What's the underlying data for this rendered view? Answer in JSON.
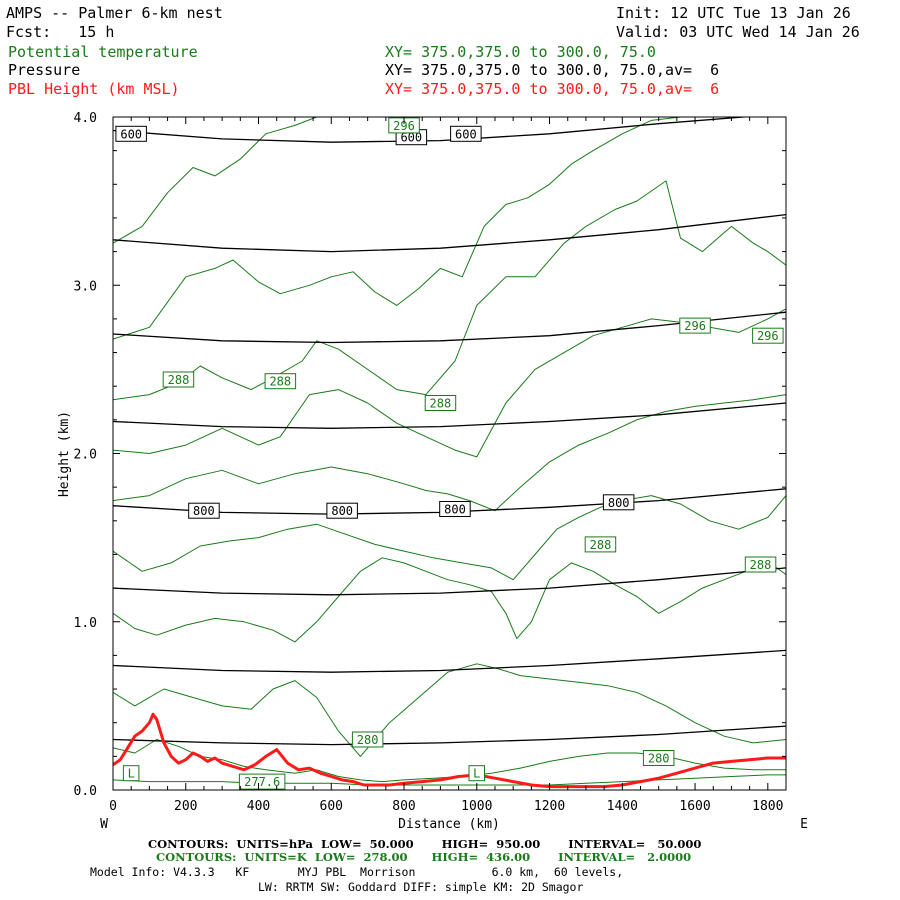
{
  "header": {
    "title": "AMPS -- Palmer 6-km nest",
    "init": "Init: 12 UTC Tue 13 Jan 26",
    "fcst": "Fcst:   15 h",
    "valid": "Valid: 03 UTC Wed 14 Jan 26",
    "fields": [
      {
        "name": "Potential temperature",
        "xy": "XY= 375.0,375.0 to 300.0, 75.0",
        "color": "#1a7a1a"
      },
      {
        "name": "Pressure",
        "xy": "XY= 375.0,375.0 to 300.0, 75.0,av=  6",
        "color": "#000000"
      },
      {
        "name": "PBL Height (km MSL)",
        "xy": "XY= 375.0,375.0 to 300.0, 75.0,av=  6",
        "color": "#ff1a1a"
      }
    ]
  },
  "footer": {
    "line1": "CONTOURS:  UNITS=hPa  LOW=  50.000       HIGH=  950.00       INTERVAL=   50.000",
    "line2": "CONTOURS:  UNITS=K  LOW=  278.00      HIGH=  436.00       INTERVAL=   2.0000",
    "line3": "Model Info: V4.3.3   KF       MYJ PBL  Morrison           6.0 km,  60 levels,",
    "line4": "LW: RRTM SW: Goddard DIFF: simple KM: 2D Smagor"
  },
  "chart_data": {
    "type": "line",
    "xlabel": "Distance (km)",
    "ylabel": "Height (km)",
    "xlim": [
      0,
      1850
    ],
    "ylim": [
      0,
      4
    ],
    "xticks": [
      0,
      200,
      400,
      600,
      800,
      1000,
      1200,
      1400,
      1600,
      1800
    ],
    "yticks": [
      "0.0",
      "1.0",
      "2.0",
      "3.0",
      "4.0"
    ],
    "x_left_label": "W",
    "x_right_label": "E",
    "colors": {
      "pressure": "#000000",
      "theta": "#1a7a1a",
      "pbl": "#ff1a1a"
    },
    "pressure_labels": [
      {
        "text": "600",
        "x": 50,
        "y": 3.9
      },
      {
        "text": "600",
        "x": 820,
        "y": 3.88
      },
      {
        "text": "600",
        "x": 970,
        "y": 3.9
      },
      {
        "text": "800",
        "x": 250,
        "y": 1.66
      },
      {
        "text": "800",
        "x": 630,
        "y": 1.66
      },
      {
        "text": "800",
        "x": 940,
        "y": 1.67
      },
      {
        "text": "800",
        "x": 1390,
        "y": 1.71
      }
    ],
    "theta_labels": [
      {
        "text": "296",
        "x": 800,
        "y": 3.95
      },
      {
        "text": "296",
        "x": 1600,
        "y": 2.76
      },
      {
        "text": "296",
        "x": 1800,
        "y": 2.7
      },
      {
        "text": "288",
        "x": 180,
        "y": 2.44
      },
      {
        "text": "288",
        "x": 460,
        "y": 2.43
      },
      {
        "text": "288",
        "x": 900,
        "y": 2.3
      },
      {
        "text": "288",
        "x": 1340,
        "y": 1.46
      },
      {
        "text": "288",
        "x": 1780,
        "y": 1.34
      },
      {
        "text": "280",
        "x": 700,
        "y": 0.3
      },
      {
        "text": "280",
        "x": 1500,
        "y": 0.19
      },
      {
        "text": "277.6",
        "x": 410,
        "y": 0.05
      },
      {
        "text": "L",
        "x": 50,
        "y": 0.1
      },
      {
        "text": "L",
        "x": 1000,
        "y": 0.1
      }
    ],
    "series": [
      {
        "kind": "pressure",
        "x": [
          0,
          300,
          600,
          900,
          1200,
          1500,
          1850
        ],
        "y": [
          3.92,
          3.87,
          3.85,
          3.86,
          3.9,
          3.96,
          4.02
        ]
      },
      {
        "kind": "pressure",
        "x": [
          0,
          300,
          600,
          900,
          1200,
          1500,
          1850
        ],
        "y": [
          3.27,
          3.22,
          3.2,
          3.22,
          3.27,
          3.33,
          3.42
        ]
      },
      {
        "kind": "pressure",
        "x": [
          0,
          300,
          600,
          900,
          1200,
          1500,
          1850
        ],
        "y": [
          2.71,
          2.67,
          2.66,
          2.67,
          2.7,
          2.76,
          2.84
        ]
      },
      {
        "kind": "pressure",
        "x": [
          0,
          300,
          600,
          900,
          1200,
          1500,
          1850
        ],
        "y": [
          2.19,
          2.16,
          2.15,
          2.16,
          2.19,
          2.23,
          2.3
        ]
      },
      {
        "kind": "pressure",
        "x": [
          0,
          300,
          600,
          900,
          1200,
          1500,
          1850
        ],
        "y": [
          1.69,
          1.65,
          1.64,
          1.65,
          1.68,
          1.72,
          1.79
        ]
      },
      {
        "kind": "pressure",
        "x": [
          0,
          300,
          600,
          900,
          1200,
          1500,
          1850
        ],
        "y": [
          1.2,
          1.17,
          1.16,
          1.17,
          1.2,
          1.25,
          1.32
        ]
      },
      {
        "kind": "pressure",
        "x": [
          0,
          300,
          600,
          900,
          1200,
          1500,
          1850
        ],
        "y": [
          0.74,
          0.71,
          0.7,
          0.71,
          0.74,
          0.78,
          0.83
        ]
      },
      {
        "kind": "pressure",
        "x": [
          0,
          300,
          600,
          900,
          1200,
          1500,
          1850
        ],
        "y": [
          0.3,
          0.28,
          0.27,
          0.28,
          0.3,
          0.33,
          0.38
        ]
      },
      {
        "kind": "theta",
        "x": [
          0,
          80,
          150,
          220,
          280,
          350,
          420,
          500,
          560,
          620,
          700,
          800,
          880
        ],
        "y": [
          3.25,
          3.35,
          3.55,
          3.7,
          3.65,
          3.75,
          3.9,
          3.95,
          4.0,
          4.0,
          4.0,
          4.0,
          4.0
        ]
      },
      {
        "kind": "theta",
        "x": [
          0,
          100,
          200,
          280,
          330,
          400,
          460,
          540,
          600,
          660,
          720,
          780,
          840,
          900,
          960,
          1020,
          1080,
          1140,
          1200,
          1260,
          1320,
          1400,
          1480,
          1560,
          1640,
          1720,
          1800,
          1850
        ],
        "y": [
          2.68,
          2.75,
          3.05,
          3.1,
          3.15,
          3.02,
          2.95,
          3.0,
          3.05,
          3.08,
          2.96,
          2.88,
          2.98,
          3.1,
          3.05,
          3.35,
          3.48,
          3.52,
          3.6,
          3.72,
          3.8,
          3.9,
          3.98,
          4.0,
          4.0,
          4.0,
          4.0,
          4.0
        ]
      },
      {
        "kind": "theta",
        "x": [
          0,
          100,
          180,
          240,
          300,
          380,
          440,
          520,
          560,
          620,
          700,
          780,
          860,
          940,
          1000,
          1080,
          1160,
          1240,
          1300,
          1380,
          1440,
          1520,
          1560,
          1620,
          1700,
          1760,
          1800,
          1850
        ],
        "y": [
          2.32,
          2.35,
          2.42,
          2.52,
          2.45,
          2.38,
          2.45,
          2.55,
          2.67,
          2.62,
          2.5,
          2.38,
          2.35,
          2.55,
          2.88,
          3.05,
          3.05,
          3.25,
          3.35,
          3.45,
          3.5,
          3.62,
          3.28,
          3.2,
          3.35,
          3.25,
          3.2,
          3.12
        ]
      },
      {
        "kind": "theta",
        "x": [
          0,
          100,
          200,
          300,
          400,
          460,
          540,
          620,
          700,
          780,
          860,
          940,
          1000,
          1080,
          1160,
          1240,
          1320,
          1400,
          1480,
          1560,
          1640,
          1720,
          1800,
          1850
        ],
        "y": [
          2.02,
          2.0,
          2.05,
          2.15,
          2.05,
          2.1,
          2.35,
          2.38,
          2.3,
          2.18,
          2.1,
          2.02,
          1.98,
          2.3,
          2.5,
          2.6,
          2.7,
          2.75,
          2.8,
          2.78,
          2.75,
          2.72,
          2.8,
          2.86
        ]
      },
      {
        "kind": "theta",
        "x": [
          0,
          100,
          200,
          300,
          400,
          500,
          600,
          700,
          800,
          860,
          920,
          980,
          1050,
          1120,
          1200,
          1280,
          1360,
          1440,
          1520,
          1600,
          1680,
          1760,
          1850
        ],
        "y": [
          1.72,
          1.75,
          1.85,
          1.9,
          1.82,
          1.88,
          1.92,
          1.88,
          1.82,
          1.78,
          1.76,
          1.72,
          1.66,
          1.8,
          1.95,
          2.05,
          2.12,
          2.2,
          2.25,
          2.28,
          2.3,
          2.32,
          2.35
        ]
      },
      {
        "kind": "theta",
        "x": [
          0,
          80,
          160,
          240,
          320,
          400,
          480,
          560,
          640,
          720,
          800,
          880,
          960,
          1040,
          1100,
          1160,
          1220,
          1280,
          1340,
          1400,
          1480,
          1560,
          1640,
          1720,
          1800,
          1850
        ],
        "y": [
          1.42,
          1.3,
          1.35,
          1.45,
          1.48,
          1.5,
          1.55,
          1.58,
          1.52,
          1.46,
          1.42,
          1.38,
          1.35,
          1.32,
          1.25,
          1.4,
          1.55,
          1.62,
          1.68,
          1.72,
          1.75,
          1.7,
          1.6,
          1.55,
          1.62,
          1.75
        ]
      },
      {
        "kind": "theta",
        "x": [
          0,
          60,
          120,
          200,
          280,
          360,
          440,
          500,
          560,
          620,
          680,
          740,
          800,
          860,
          920,
          980,
          1040,
          1080,
          1110,
          1150,
          1200,
          1260,
          1320,
          1380,
          1440,
          1500,
          1560,
          1620,
          1680,
          1740,
          1800,
          1850
        ],
        "y": [
          1.05,
          0.96,
          0.92,
          0.98,
          1.02,
          1.0,
          0.95,
          0.88,
          1.0,
          1.15,
          1.3,
          1.38,
          1.35,
          1.3,
          1.25,
          1.22,
          1.18,
          1.05,
          0.9,
          1.0,
          1.25,
          1.35,
          1.3,
          1.22,
          1.15,
          1.05,
          1.12,
          1.2,
          1.25,
          1.3,
          1.36,
          1.28
        ]
      },
      {
        "kind": "theta",
        "x": [
          0,
          60,
          140,
          220,
          300,
          380,
          440,
          500,
          560,
          620,
          680,
          760,
          840,
          920,
          1000,
          1060,
          1120,
          1200,
          1280,
          1360,
          1440,
          1520,
          1600,
          1680,
          1760,
          1850
        ],
        "y": [
          0.58,
          0.5,
          0.6,
          0.55,
          0.5,
          0.48,
          0.6,
          0.65,
          0.55,
          0.35,
          0.2,
          0.4,
          0.55,
          0.7,
          0.75,
          0.72,
          0.68,
          0.66,
          0.64,
          0.62,
          0.58,
          0.5,
          0.4,
          0.32,
          0.28,
          0.3
        ]
      },
      {
        "kind": "theta",
        "x": [
          0,
          60,
          120,
          180,
          240,
          300,
          360,
          420,
          500,
          560,
          620,
          680,
          740,
          800,
          880,
          960,
          1040,
          1120,
          1200,
          1280,
          1360,
          1440,
          1520,
          1600,
          1680,
          1760,
          1850
        ],
        "y": [
          0.25,
          0.22,
          0.3,
          0.26,
          0.2,
          0.18,
          0.14,
          0.12,
          0.1,
          0.12,
          0.08,
          0.06,
          0.05,
          0.06,
          0.07,
          0.08,
          0.1,
          0.13,
          0.17,
          0.2,
          0.22,
          0.22,
          0.2,
          0.16,
          0.13,
          0.12,
          0.12
        ]
      },
      {
        "kind": "theta",
        "x": [
          0,
          100,
          200,
          300,
          400,
          500,
          600,
          700,
          800,
          900,
          1000,
          1100,
          1200,
          1300,
          1400,
          1500,
          1600,
          1700,
          1800,
          1850
        ],
        "y": [
          0.06,
          0.05,
          0.05,
          0.05,
          0.04,
          0.04,
          0.04,
          0.03,
          0.03,
          0.03,
          0.03,
          0.03,
          0.03,
          0.04,
          0.05,
          0.06,
          0.07,
          0.08,
          0.09,
          0.09
        ]
      },
      {
        "kind": "pbl",
        "x": [
          0,
          20,
          40,
          60,
          80,
          100,
          110,
          120,
          140,
          160,
          180,
          200,
          220,
          240,
          260,
          280,
          300,
          330,
          360,
          390,
          420,
          450,
          480,
          510,
          540,
          570,
          600,
          630,
          660,
          690,
          720,
          760,
          800,
          850,
          900,
          950,
          1000,
          1050,
          1100,
          1150,
          1200,
          1250,
          1300,
          1350,
          1400,
          1450,
          1500,
          1550,
          1600,
          1650,
          1700,
          1750,
          1800,
          1850
        ],
        "y": [
          0.15,
          0.18,
          0.25,
          0.32,
          0.35,
          0.4,
          0.45,
          0.42,
          0.28,
          0.2,
          0.16,
          0.18,
          0.22,
          0.2,
          0.17,
          0.19,
          0.16,
          0.14,
          0.12,
          0.15,
          0.2,
          0.24,
          0.16,
          0.12,
          0.13,
          0.1,
          0.08,
          0.06,
          0.05,
          0.03,
          0.03,
          0.03,
          0.04,
          0.05,
          0.06,
          0.08,
          0.09,
          0.07,
          0.05,
          0.03,
          0.02,
          0.02,
          0.02,
          0.02,
          0.03,
          0.05,
          0.07,
          0.1,
          0.13,
          0.16,
          0.17,
          0.18,
          0.19,
          0.19
        ]
      }
    ]
  }
}
